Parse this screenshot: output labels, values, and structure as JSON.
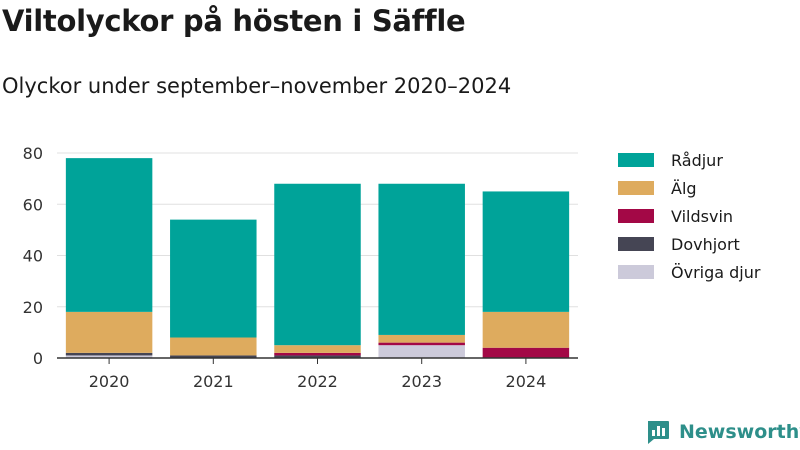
{
  "title": "Viltolyckor på hösten i Säffle",
  "subtitle": "Olyckor under september–november 2020–2024",
  "brand": {
    "name": "Newsworthy",
    "icon": "newsworthy-logo-icon"
  },
  "colors": {
    "Rådjur": "#00a399",
    "Älg": "#deab5e",
    "Vildsvin": "#a30846",
    "Dovhjort": "#454554",
    "Övriga djur": "#cccada",
    "grid": "#e0e0e0",
    "axis": "#333333"
  },
  "chart_data": {
    "type": "bar",
    "stacked": true,
    "title": "Viltolyckor på hösten i Säffle",
    "subtitle": "Olyckor under september–november 2020–2024",
    "categories": [
      "2020",
      "2021",
      "2022",
      "2023",
      "2024"
    ],
    "series": [
      {
        "name": "Övriga djur",
        "values": [
          1,
          0,
          0,
          5,
          0
        ]
      },
      {
        "name": "Dovhjort",
        "values": [
          1,
          1,
          1,
          0,
          0
        ]
      },
      {
        "name": "Vildsvin",
        "values": [
          0,
          0,
          1,
          1,
          4
        ]
      },
      {
        "name": "Älg",
        "values": [
          16,
          7,
          3,
          3,
          14
        ]
      },
      {
        "name": "Rådjur",
        "values": [
          60,
          46,
          63,
          59,
          47
        ]
      }
    ],
    "legend_order": [
      "Rådjur",
      "Älg",
      "Vildsvin",
      "Dovhjort",
      "Övriga djur"
    ],
    "ylim": [
      0,
      80
    ],
    "yticks": [
      0,
      20,
      40,
      60,
      80
    ],
    "grid": true,
    "legend": "right"
  }
}
